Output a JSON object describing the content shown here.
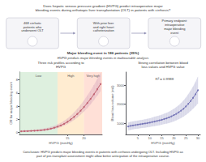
{
  "title": "Does hepatic venous pressure gradient (HVPG) predict intraoperative major\nbleeding events during orthotopic liver transplantation (OLT) in patients with cirrhosis?",
  "annotations": [
    "468 cirrhotic\npatients who\nunderwent OLT",
    "With prior liver\nand right heart\ncatheterization",
    "Primary endpoint:\nintraoperative\nmajor bleeding\nevent",
    "Major bleeding event in 186 patients (35%)",
    "HVPG predicts major bleeding events in multivariable analysis",
    "Conclusion: HVPG predicts major bleeding events in patients with cirrhosis undergoing OLT. Including HVPG as\npart of pre-transplant assessment might allow better anticipation of the intraoperative course."
  ],
  "chart_data": [
    {
      "type": "line",
      "title": "Three risk profiles according to\nHVPG",
      "xlabel": "HVPG (mmHg)",
      "ylabel": "OR for major bleeding event",
      "x": [
        1,
        2,
        3,
        4,
        5,
        6,
        7,
        8,
        9,
        10,
        11,
        12,
        13,
        14,
        15,
        16,
        17,
        18,
        19,
        20,
        21,
        22,
        23,
        24,
        25
      ],
      "series": [
        {
          "color": "#c06070",
          "ci_color": "#ddb0c0",
          "marker": "circle",
          "line_style": "solid",
          "values": [
            0.18,
            0.2,
            0.22,
            0.24,
            0.27,
            0.3,
            0.34,
            0.4,
            0.48,
            0.58,
            0.72,
            0.88,
            1.08,
            1.32,
            1.62,
            1.98,
            2.38,
            2.82,
            3.32,
            3.88,
            4.48,
            5.12,
            5.82,
            6.58,
            7.38
          ],
          "y_low": [
            0.1,
            0.12,
            0.13,
            0.15,
            0.17,
            0.2,
            0.23,
            0.28,
            0.34,
            0.43,
            0.54,
            0.68,
            0.85,
            1.05,
            1.3,
            1.58,
            1.92,
            2.3,
            2.74,
            3.22,
            3.74,
            4.32,
            4.96,
            5.62,
            6.34
          ],
          "y_high": [
            0.28,
            0.3,
            0.33,
            0.36,
            0.4,
            0.45,
            0.51,
            0.6,
            0.7,
            0.84,
            1.01,
            1.21,
            1.45,
            1.76,
            2.12,
            2.55,
            3.04,
            3.58,
            4.18,
            4.84,
            5.58,
            6.36,
            7.2,
            8.1,
            9.05
          ]
        }
      ],
      "risk_labels": [
        "Low",
        "High",
        "Very high"
      ],
      "risk_colors": [
        "#c8e6c9",
        "#ffe0b2",
        "#ffccbc"
      ],
      "risk_boundaries": [
        12,
        20
      ],
      "xlim": [
        0.5,
        25.5
      ],
      "ylim": [
        -0.3,
        9.2
      ],
      "xticks": [
        15,
        20
      ],
      "yticks": [
        0,
        2,
        4,
        6,
        8
      ],
      "grid": false
    },
    {
      "type": "line",
      "title": "Strong correlation between blood\nloss values and HVPG value",
      "xlabel": "HVPG (mmHg)",
      "ylabel": "Blood loss volume (mL)",
      "annotations": [
        "R² = 0.9988"
      ],
      "x": [
        1,
        2,
        3,
        4,
        5,
        6,
        7,
        8,
        9,
        10,
        11,
        12,
        13,
        14,
        15,
        16,
        17,
        18,
        19,
        20,
        21,
        22,
        23,
        24,
        25,
        26,
        27,
        28,
        29,
        30
      ],
      "series": [
        {
          "color": "#7878b8",
          "ci_color": "#b8b8d8",
          "marker": "circle",
          "line_style": "solid",
          "values": [
            820,
            855,
            880,
            900,
            920,
            940,
            960,
            980,
            1000,
            1025,
            1055,
            1085,
            1115,
            1145,
            1175,
            1215,
            1255,
            1305,
            1360,
            1420,
            1490,
            1570,
            1660,
            1760,
            1880,
            2020,
            2170,
            2340,
            2530,
            2740
          ],
          "y_low": [
            620,
            650,
            675,
            695,
            715,
            735,
            750,
            768,
            785,
            805,
            828,
            850,
            872,
            896,
            920,
            952,
            982,
            1015,
            1052,
            1100,
            1152,
            1212,
            1278,
            1350,
            1438,
            1540,
            1650,
            1770,
            1900,
            2050
          ],
          "y_high": [
            1020,
            1060,
            1085,
            1105,
            1125,
            1145,
            1170,
            1195,
            1220,
            1250,
            1290,
            1330,
            1360,
            1400,
            1440,
            1490,
            1540,
            1605,
            1672,
            1745,
            1838,
            1940,
            2055,
            2185,
            2340,
            2520,
            2710,
            2930,
            3180,
            3450
          ]
        }
      ],
      "xlim": [
        0,
        31
      ],
      "ylim": [
        400,
        3700
      ],
      "xticks": [
        5,
        10,
        15,
        20,
        25,
        30
      ],
      "yticks": [
        1000,
        2000,
        3000
      ],
      "grid": false
    }
  ]
}
